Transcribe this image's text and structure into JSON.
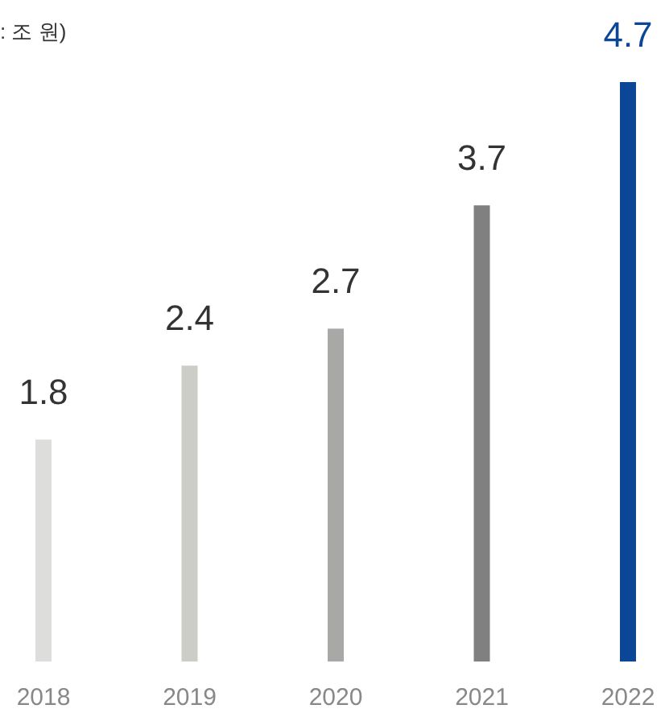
{
  "chart_data": {
    "type": "bar",
    "title": ": 조 원)",
    "categories": [
      "2018",
      "2019",
      "2020",
      "2021",
      "2022"
    ],
    "values": [
      1.8,
      2.4,
      2.7,
      3.7,
      4.7
    ],
    "colors": [
      "#dddddc",
      "#cdcdc8",
      "#a8a8a6",
      "#808080",
      "#0b4697"
    ],
    "data_labels": true
  }
}
